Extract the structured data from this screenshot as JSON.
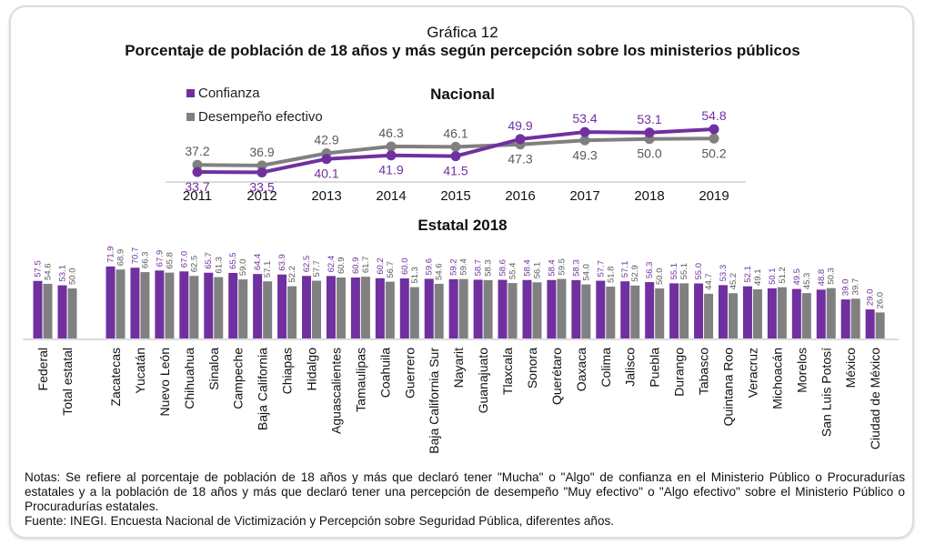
{
  "figure": {
    "number_label": "Gráfica 12",
    "title": "Porcentaje de población de 18 años y más según percepción sobre los ministerios públicos",
    "colors": {
      "confianza": "#7030a0",
      "desempeno": "#808080",
      "confianza_label": "#7030a0",
      "desempeno_label": "#595959"
    }
  },
  "legend": [
    {
      "name": "Confianza",
      "color": "#7030a0"
    },
    {
      "name": "Desempeño efectivo",
      "color": "#808080"
    }
  ],
  "chart_data": [
    {
      "type": "line",
      "title": "Nacional",
      "x": [
        "2011",
        "2012",
        "2013",
        "2014",
        "2015",
        "2016",
        "2017",
        "2018",
        "2019"
      ],
      "series": [
        {
          "name": "Confianza",
          "values": [
            33.7,
            33.5,
            40.1,
            41.9,
            41.5,
            49.9,
            53.4,
            53.1,
            54.8
          ]
        },
        {
          "name": "Desempeño efectivo",
          "values": [
            37.2,
            36.9,
            42.9,
            46.3,
            46.1,
            47.3,
            49.3,
            50.0,
            50.2
          ]
        }
      ],
      "xlabel": "",
      "ylabel": "",
      "grid": false,
      "legend_position": "top-left"
    },
    {
      "type": "bar",
      "title": "Estatal 2018",
      "categories": [
        "Federal",
        "Total estatal",
        "Zacatecas",
        "Yucatán",
        "Nuevo León",
        "Chihuahua",
        "Sinaloa",
        "Campeche",
        "Baja California",
        "Chiapas",
        "Hidalgo",
        "Aguascalientes",
        "Tamaulipas",
        "Coahuila",
        "Guerrero",
        "Baja California Sur",
        "Nayarit",
        "Guanajuato",
        "Tlaxcala",
        "Sonora",
        "Querétaro",
        "Oaxaca",
        "Colima",
        "Jalisco",
        "Puebla",
        "Durango",
        "Tabasco",
        "Quintana Roo",
        "Veracruz",
        "Michoacán",
        "Morelos",
        "San Luis Potosí",
        "México",
        "Ciudad de México"
      ],
      "series": [
        {
          "name": "Confianza",
          "values": [
            57.5,
            53.1,
            71.9,
            70.7,
            67.9,
            67.0,
            65.7,
            65.5,
            64.4,
            63.9,
            62.5,
            62.4,
            60.9,
            60.2,
            60.0,
            59.6,
            59.2,
            58.7,
            58.6,
            58.4,
            58.4,
            58.3,
            57.7,
            57.1,
            56.3,
            55.1,
            55.0,
            53.3,
            52.1,
            50.1,
            49.5,
            48.8,
            39.0,
            29.0
          ]
        },
        {
          "name": "Desempeño efectivo",
          "values": [
            54.6,
            50.0,
            68.9,
            66.3,
            65.8,
            62.5,
            61.3,
            59.0,
            57.1,
            52.2,
            57.7,
            60.9,
            61.7,
            56.7,
            51.3,
            54.6,
            59.4,
            58.3,
            55.4,
            56.1,
            59.5,
            54.0,
            51.8,
            52.9,
            50.0,
            55.1,
            44.7,
            45.2,
            49.1,
            51.2,
            45.3,
            50.3,
            39.7,
            26.0
          ]
        }
      ],
      "xlabel": "",
      "ylabel": "",
      "grid": false
    }
  ],
  "notes": {
    "notas": "Notas: Se refiere al porcentaje de población de 18 años y más que declaró tener \"Mucha\" o \"Algo\" de confianza en el Ministerio Público o Procuradurías estatales y a la población de 18 años y más que declaró tener una percepción de desempeño \"Muy efectivo\" o \"Algo efectivo\" sobre el Ministerio Público o Procuradurías estatales.",
    "fuente": "Fuente: INEGI. Encuesta Nacional de Victimización y Percepción sobre Seguridad Pública, diferentes años."
  }
}
